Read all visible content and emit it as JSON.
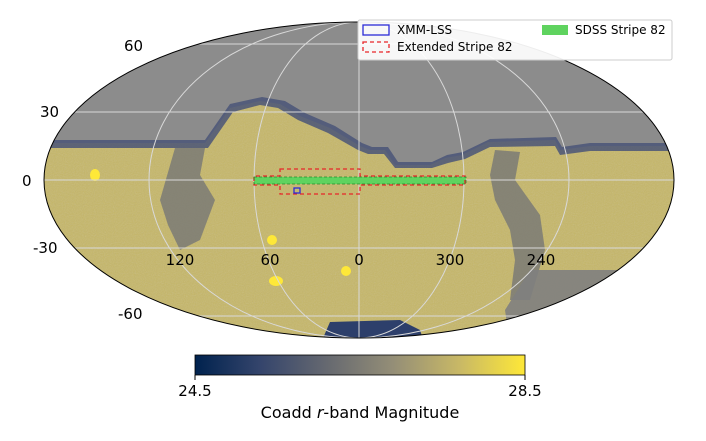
{
  "chart_data": {
    "type": "heatmap",
    "projection": "Mollweide (all-sky)",
    "grid": true,
    "lat_ticks": [
      "60",
      "30",
      "0",
      "-30",
      "-60"
    ],
    "lon_ticks": [
      "120",
      "60",
      "0",
      "300",
      "240"
    ],
    "legend": {
      "placement": "top-right",
      "entries": [
        {
          "name": "XMM-LSS",
          "style": "outline",
          "color": "#2b2bd6"
        },
        {
          "name": "Extended Stripe 82",
          "style": "dashed-outline",
          "color": "#e8262a"
        },
        {
          "name": "SDSS Stripe 82",
          "style": "filled",
          "color": "#5fd35f"
        }
      ]
    },
    "colorbar": {
      "label_prefix": "Coadd ",
      "label_italic": "r",
      "label_suffix": "-band Magnitude",
      "min_label": "24.5",
      "max_label": "28.5",
      "vmin": 24.5,
      "vmax": 28.5,
      "colormap": "cividis",
      "colors": [
        "#00224e",
        "#35456c",
        "#666970",
        "#948e77",
        "#c8b866",
        "#fee838"
      ]
    },
    "masked_color": "#8c8c8c"
  }
}
